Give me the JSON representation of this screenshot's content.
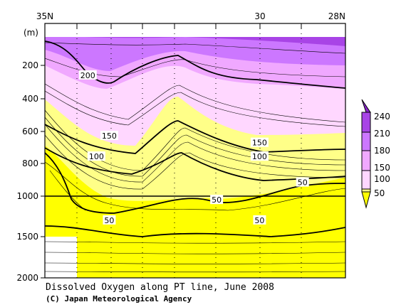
{
  "chart_data": {
    "type": "contour",
    "title": "Dissolved Oxygen along PT line, June 2008",
    "credit": "(C) Japan Meteorological Agency",
    "x_axis": {
      "position": "top",
      "range_lat": [
        35,
        28
      ],
      "tick_labels": [
        {
          "lat": 35,
          "label": "35N"
        },
        {
          "lat": 30,
          "label": "30"
        },
        {
          "lat": 28,
          "label": "28N"
        }
      ],
      "minor_ticks": 8
    },
    "y_axis": {
      "unit_label": "(m)",
      "range": [
        0,
        2000
      ],
      "upper_range": [
        0,
        1000
      ],
      "lower_range": [
        1000,
        2000
      ],
      "tick_labels": [
        {
          "depth": 200,
          "label": "200"
        },
        {
          "depth": 400,
          "label": "400"
        },
        {
          "depth": 600,
          "label": "600"
        },
        {
          "depth": 800,
          "label": "800"
        },
        {
          "depth": 1000,
          "label": "1000"
        },
        {
          "depth": 1500,
          "label": "1500"
        },
        {
          "depth": 2000,
          "label": "2000"
        }
      ]
    },
    "colorbar": {
      "levels": [
        "50",
        "100",
        "150",
        "180",
        "210",
        "240"
      ],
      "colors": [
        "#ffff00",
        "#ffff88",
        "#ffd7ff",
        "#f0a8ff",
        "#cc77ff",
        "#a844e6",
        "#8a22cc"
      ]
    },
    "contour_labels": [
      {
        "text": "200",
        "lat": 34.0,
        "depth": 300
      },
      {
        "text": "150",
        "lat": 33.5,
        "depth": 650
      },
      {
        "text": "150",
        "lat": 30.0,
        "depth": 690
      },
      {
        "text": "100",
        "lat": 33.8,
        "depth": 770
      },
      {
        "text": "100",
        "lat": 30.0,
        "depth": 770
      },
      {
        "text": "50",
        "lat": 29.0,
        "depth": 920
      },
      {
        "text": "50",
        "lat": 31.0,
        "depth": 1045
      },
      {
        "text": "50",
        "lat": 33.5,
        "depth": 1295
      },
      {
        "text": "50",
        "lat": 30.0,
        "depth": 1295
      }
    ]
  }
}
